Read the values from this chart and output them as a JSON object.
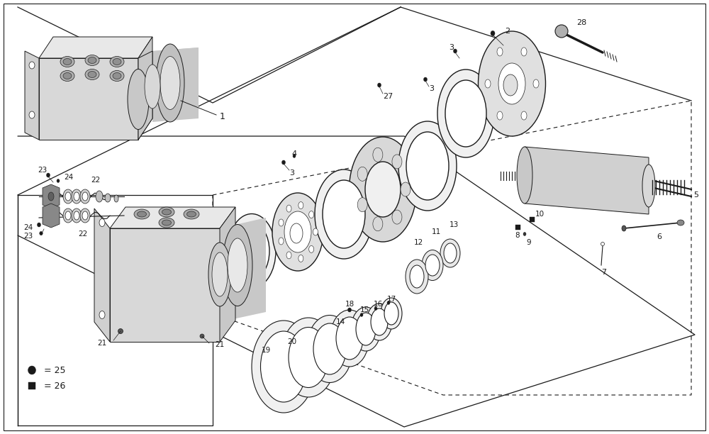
{
  "bg_color": "#ffffff",
  "lc": "#1a1a1a",
  "fig_w": 10.0,
  "fig_h": 6.12,
  "dpi": 100,
  "xlim": [
    0,
    1000
  ],
  "ylim": [
    0,
    612
  ]
}
